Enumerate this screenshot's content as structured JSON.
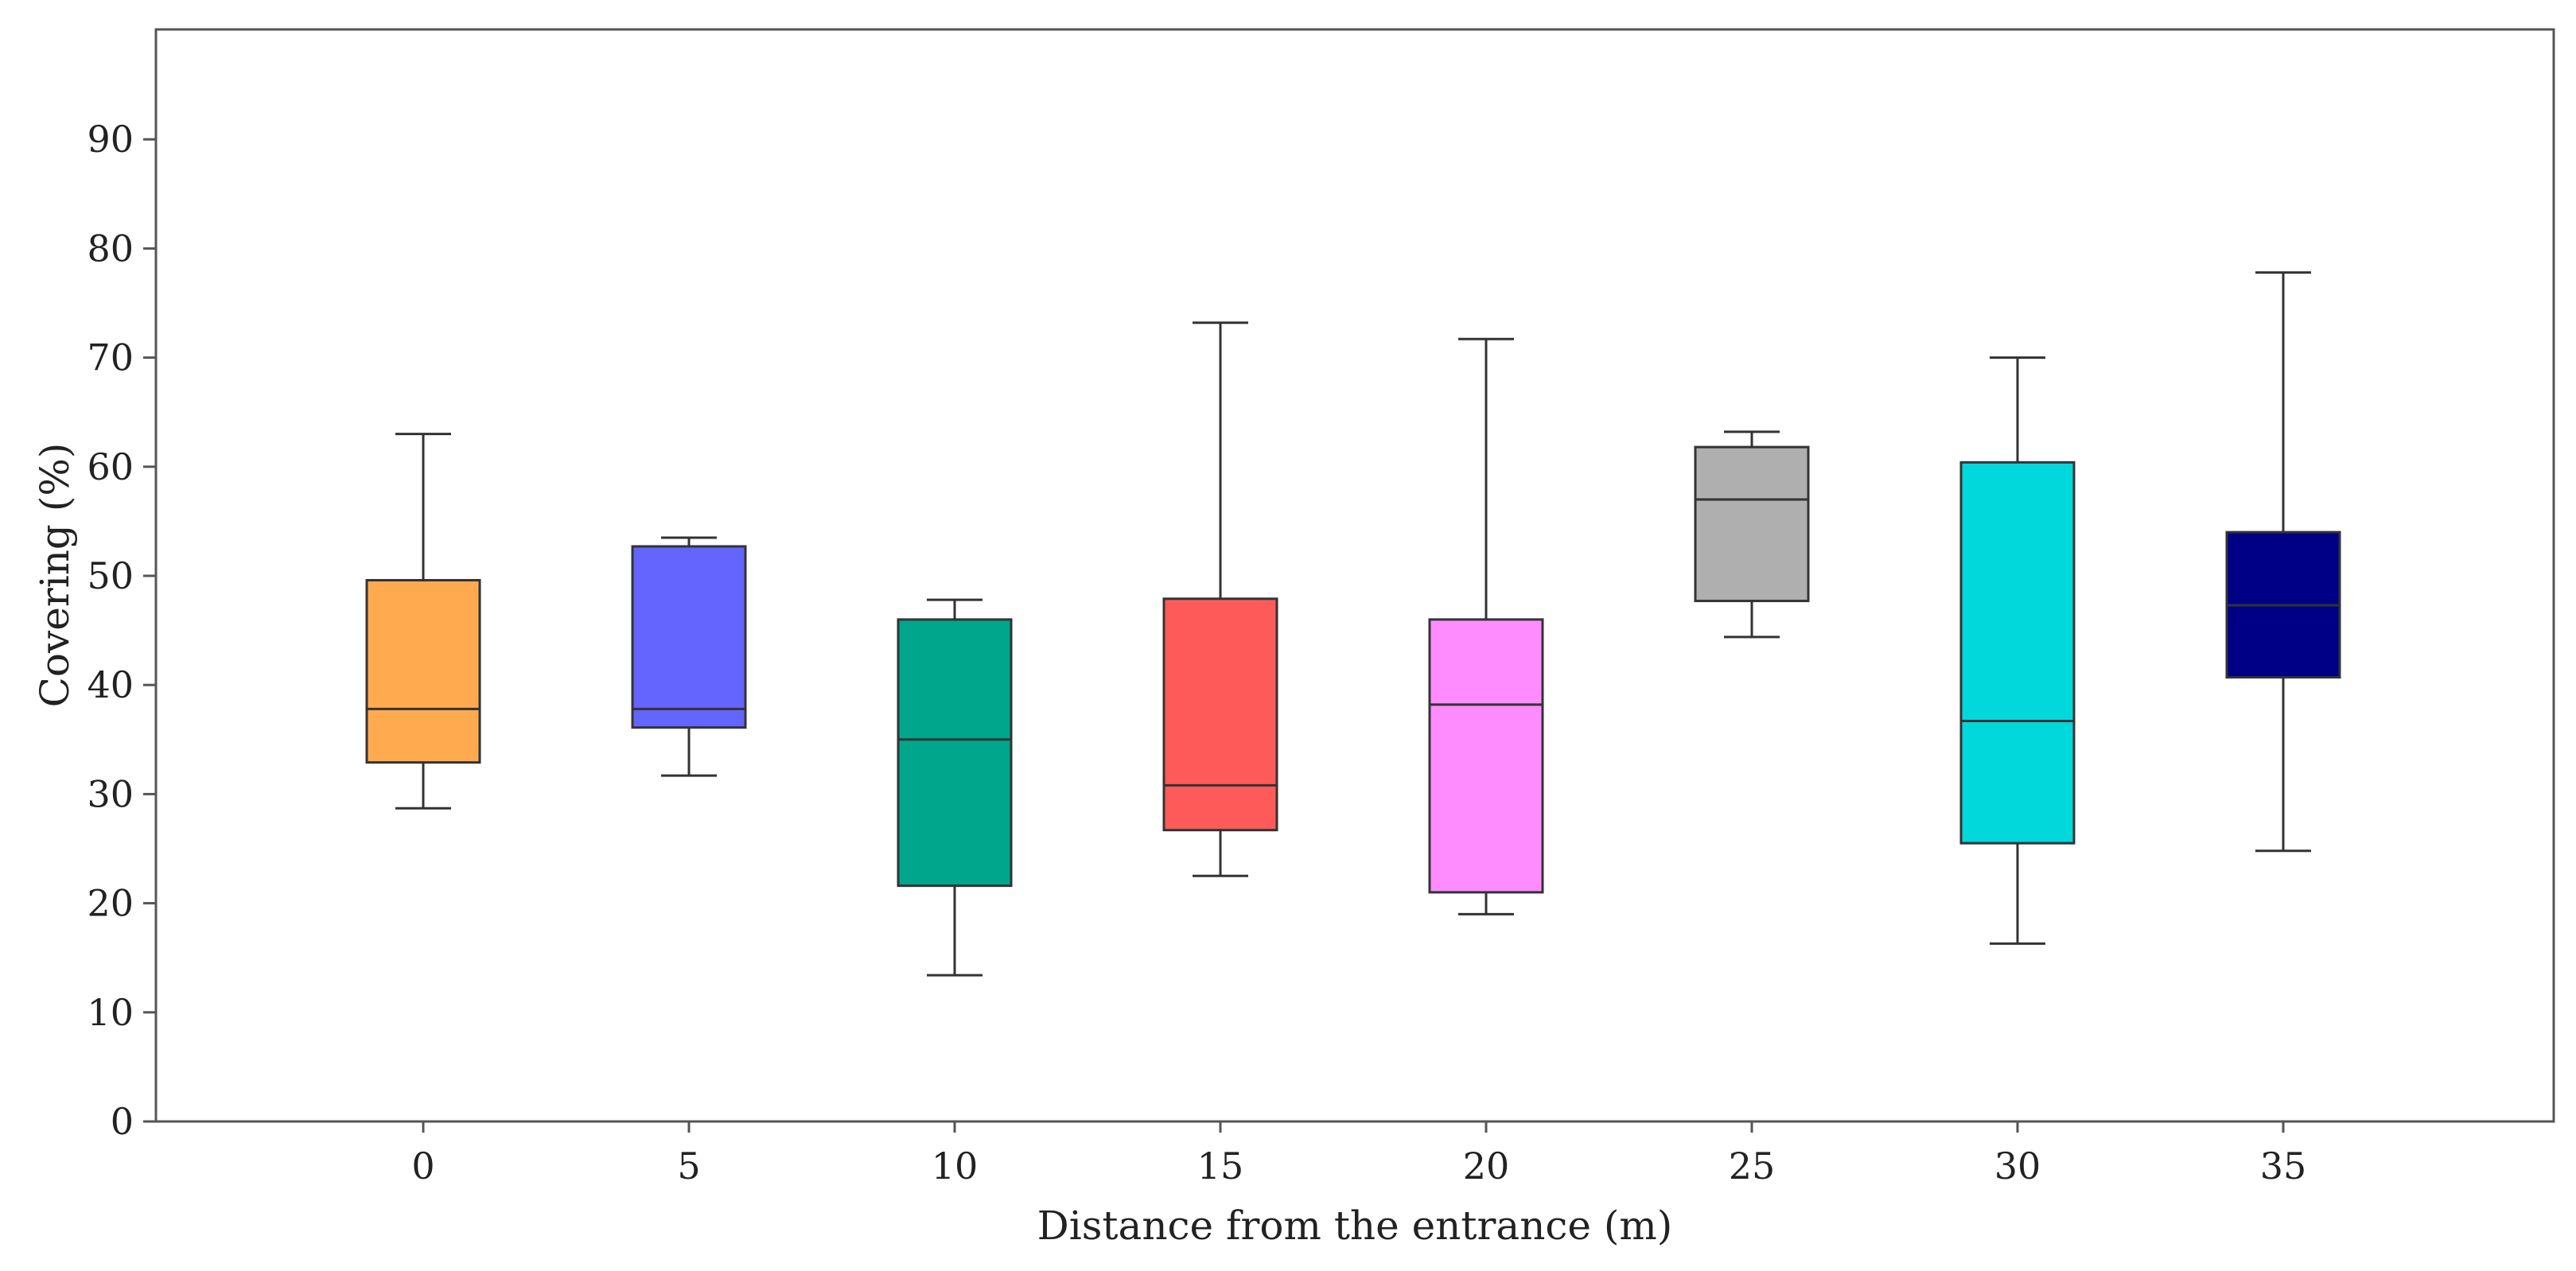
{
  "chart_data": {
    "type": "box",
    "xlabel": "Distance from the entrance (m)",
    "ylabel": "Covering (%)",
    "ylim": [
      0,
      100
    ],
    "yticks": [
      0,
      10,
      20,
      30,
      40,
      50,
      60,
      70,
      80,
      90
    ],
    "grid": false,
    "legend": "none",
    "categories": [
      "0",
      "5",
      "10",
      "15",
      "20",
      "25",
      "30",
      "35"
    ],
    "boxes": [
      {
        "category": "0",
        "min": 28.7,
        "q1": 32.9,
        "median": 37.8,
        "q3": 49.6,
        "max": 63.0,
        "color": "#FFAA4F"
      },
      {
        "category": "5",
        "min": 31.7,
        "q1": 36.1,
        "median": 37.8,
        "q3": 52.7,
        "max": 53.5,
        "color": "#6464FF"
      },
      {
        "category": "10",
        "min": 13.4,
        "q1": 21.6,
        "median": 35.0,
        "q3": 46.0,
        "max": 47.8,
        "color": "#00A68C"
      },
      {
        "category": "15",
        "min": 22.5,
        "q1": 26.7,
        "median": 30.8,
        "q3": 47.9,
        "max": 73.2,
        "color": "#FF5A5A"
      },
      {
        "category": "20",
        "min": 19.0,
        "q1": 21.0,
        "median": 38.2,
        "q3": 46.0,
        "max": 71.7,
        "color": "#FF8CFF"
      },
      {
        "category": "25",
        "min": 44.4,
        "q1": 47.7,
        "median": 57.0,
        "q3": 61.8,
        "max": 63.2,
        "color": "#AFAFAF"
      },
      {
        "category": "30",
        "min": 16.3,
        "q1": 25.5,
        "median": 36.7,
        "q3": 60.4,
        "max": 70.0,
        "color": "#00D8DC"
      },
      {
        "category": "35",
        "min": 24.8,
        "q1": 40.7,
        "median": 47.3,
        "q3": 54.0,
        "max": 77.8,
        "color": "#000087"
      }
    ]
  }
}
